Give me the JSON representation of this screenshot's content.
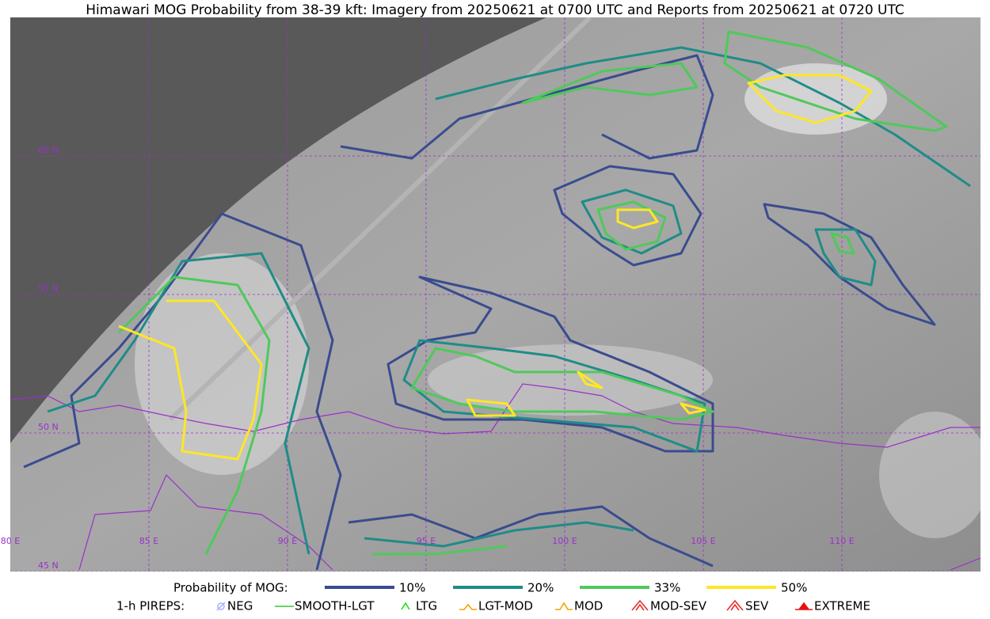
{
  "title": "Himawari MOG Probability from 38-39 kft: Imagery from 20250621 at 0700 UTC and Reports from 20250621 at 0720 UTC",
  "map": {
    "lat_labels": [
      "60 N",
      "55 N",
      "50 N",
      "45 N"
    ],
    "lon_labels": [
      "80 E",
      "85 E",
      "90 E",
      "95 E",
      "100 E",
      "105 E",
      "110 E"
    ]
  },
  "legend": {
    "probability": {
      "label": "Probability of MOG:",
      "items": [
        {
          "label": "10%",
          "color": "#3a4c8f"
        },
        {
          "label": "20%",
          "color": "#1f8c87"
        },
        {
          "label": "33%",
          "color": "#4fc95a"
        },
        {
          "label": "50%",
          "color": "#fde725"
        }
      ]
    },
    "pireps": {
      "label": "1-h PIREPS:",
      "items": [
        {
          "label": "NEG",
          "color": "#b0b0ff"
        },
        {
          "label": "SMOOTH-LGT",
          "color": "#33cc33"
        },
        {
          "label": "LTG",
          "color": "#22dd22"
        },
        {
          "label": "LGT-MOD",
          "color": "#f5a300"
        },
        {
          "label": "MOD",
          "color": "#f5a300"
        },
        {
          "label": "MOD-SEV",
          "color": "#e83030"
        },
        {
          "label": "SEV",
          "color": "#e83030"
        },
        {
          "label": "EXTREME",
          "color": "#e81010"
        }
      ]
    }
  }
}
